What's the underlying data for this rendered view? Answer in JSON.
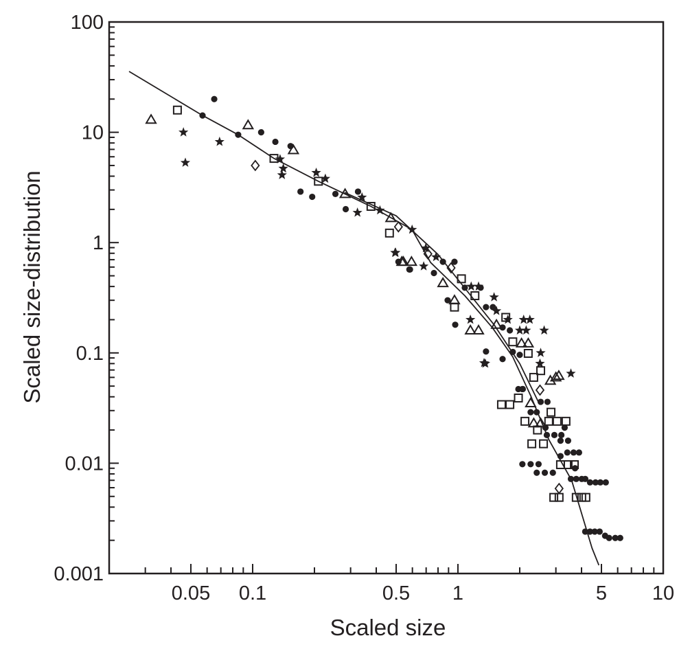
{
  "chart_data": {
    "type": "scatter",
    "title": "",
    "xlabel": "Scaled size",
    "ylabel": "Scaled size-distribution",
    "xscale": "log",
    "yscale": "log",
    "xlim": [
      0.02,
      10
    ],
    "ylim": [
      0.001,
      100
    ],
    "grid": false,
    "legend": "none",
    "x_ticks": [
      {
        "v": 0.05,
        "label": "0.05"
      },
      {
        "v": 0.1,
        "label": "0.1"
      },
      {
        "v": 0.5,
        "label": "0.5"
      },
      {
        "v": 1,
        "label": "1"
      },
      {
        "v": 5,
        "label": "5"
      },
      {
        "v": 10,
        "label": "10"
      }
    ],
    "y_ticks": [
      {
        "v": 100,
        "label": "100"
      },
      {
        "v": 10,
        "label": "10"
      },
      {
        "v": 1,
        "label": "1"
      },
      {
        "v": 0.1,
        "label": "0.1"
      },
      {
        "v": 0.01,
        "label": "0.01"
      },
      {
        "v": 0.001,
        "label": "0.001"
      }
    ],
    "colors": {
      "ink": "#231f20"
    },
    "marker_types": {
      "c": "filled-circle",
      "s": "open-square",
      "t": "open-triangle",
      "d": "open-diamond",
      "*": "filled-star"
    },
    "fit_curves": [
      {
        "name": "fit-main",
        "points": [
          [
            0.025,
            35.6
          ],
          [
            0.057,
            14.2
          ],
          [
            0.085,
            9.5
          ],
          [
            0.127,
            5.8
          ],
          [
            0.209,
            3.6
          ],
          [
            0.377,
            2.13
          ],
          [
            0.598,
            1.31
          ],
          [
            0.736,
            0.66
          ],
          [
            1.08,
            0.33
          ],
          [
            1.47,
            0.17
          ],
          [
            1.85,
            0.092
          ],
          [
            2.26,
            0.041
          ],
          [
            2.77,
            0.0164
          ],
          [
            3.58,
            0.007
          ],
          [
            4.5,
            0.0017
          ],
          [
            4.86,
            0.00119
          ]
        ]
      },
      {
        "name": "fit-secondary",
        "points": [
          [
            0.28,
            2.85
          ],
          [
            0.5,
            1.75
          ],
          [
            0.8,
            0.78
          ],
          [
            1.1,
            0.37
          ],
          [
            1.5,
            0.18
          ],
          [
            2.0,
            0.08
          ],
          [
            2.5,
            0.034
          ]
        ]
      }
    ],
    "points": [
      [
        0.032,
        13.0,
        "t"
      ],
      [
        0.043,
        15.9,
        "s"
      ],
      [
        0.046,
        10.0,
        "*"
      ],
      [
        0.047,
        5.3,
        "*"
      ],
      [
        0.057,
        14.2,
        "c"
      ],
      [
        0.065,
        20.0,
        "c"
      ],
      [
        0.069,
        8.2,
        "*"
      ],
      [
        0.085,
        9.5,
        "c"
      ],
      [
        0.095,
        11.6,
        "t"
      ],
      [
        0.103,
        5.0,
        "d"
      ],
      [
        0.11,
        10.0,
        "c"
      ],
      [
        0.129,
        8.2,
        "c"
      ],
      [
        0.153,
        7.5,
        "c"
      ],
      [
        0.158,
        6.9,
        "t"
      ],
      [
        0.127,
        5.8,
        "s"
      ],
      [
        0.136,
        5.7,
        "*"
      ],
      [
        0.141,
        4.7,
        "*"
      ],
      [
        0.139,
        4.1,
        "*"
      ],
      [
        0.204,
        4.3,
        "*"
      ],
      [
        0.209,
        3.6,
        "s"
      ],
      [
        0.226,
        3.8,
        "*"
      ],
      [
        0.171,
        2.9,
        "c"
      ],
      [
        0.195,
        2.6,
        "c"
      ],
      [
        0.253,
        2.76,
        "c"
      ],
      [
        0.282,
        2.76,
        "t"
      ],
      [
        0.326,
        2.9,
        "c"
      ],
      [
        0.341,
        2.57,
        "*"
      ],
      [
        0.284,
        2.01,
        "c"
      ],
      [
        0.324,
        1.87,
        "*"
      ],
      [
        0.377,
        2.13,
        "s"
      ],
      [
        0.417,
        1.96,
        "*"
      ],
      [
        0.471,
        1.67,
        "t"
      ],
      [
        0.513,
        1.39,
        "d"
      ],
      [
        0.598,
        1.31,
        "*"
      ],
      [
        0.464,
        1.22,
        "s"
      ],
      [
        0.497,
        0.81,
        "*"
      ],
      [
        0.533,
        0.67,
        "t"
      ],
      [
        0.584,
        0.57,
        "c"
      ],
      [
        0.494,
        0.81,
        "*"
      ],
      [
        0.513,
        0.67,
        "c"
      ],
      [
        0.542,
        0.67,
        "t"
      ],
      [
        0.594,
        0.67,
        "t"
      ],
      [
        0.58,
        0.57,
        "c"
      ],
      [
        0.697,
        0.89,
        "*"
      ],
      [
        0.714,
        0.79,
        "d"
      ],
      [
        0.782,
        0.74,
        "*"
      ],
      [
        0.845,
        0.67,
        "c"
      ],
      [
        0.962,
        0.67,
        "c"
      ],
      [
        0.681,
        0.61,
        "*"
      ],
      [
        0.764,
        0.53,
        "c"
      ],
      [
        0.926,
        0.59,
        "d"
      ],
      [
        0.845,
        0.43,
        "t"
      ],
      [
        1.04,
        0.47,
        "s"
      ],
      [
        1.08,
        0.39,
        "c"
      ],
      [
        1.29,
        0.39,
        "c"
      ],
      [
        1.16,
        0.4,
        "*"
      ],
      [
        1.26,
        0.4,
        "*"
      ],
      [
        1.21,
        0.33,
        "s"
      ],
      [
        1.5,
        0.32,
        "*"
      ],
      [
        0.891,
        0.3,
        "c"
      ],
      [
        0.962,
        0.3,
        "t"
      ],
      [
        0.962,
        0.26,
        "s"
      ],
      [
        1.37,
        0.26,
        "c"
      ],
      [
        1.48,
        0.26,
        "c"
      ],
      [
        1.54,
        0.24,
        "*"
      ],
      [
        0.97,
        0.18,
        "c"
      ],
      [
        1.15,
        0.2,
        "*"
      ],
      [
        1.15,
        0.16,
        "t"
      ],
      [
        1.26,
        0.16,
        "t"
      ],
      [
        1.71,
        0.21,
        "s"
      ],
      [
        1.75,
        0.2,
        "*"
      ],
      [
        2.09,
        0.2,
        "*"
      ],
      [
        2.24,
        0.2,
        "*"
      ],
      [
        2.0,
        0.16,
        "*"
      ],
      [
        2.15,
        0.16,
        "*"
      ],
      [
        2.63,
        0.16,
        "*"
      ],
      [
        1.54,
        0.18,
        "t"
      ],
      [
        1.65,
        0.17,
        "c"
      ],
      [
        1.79,
        0.16,
        "c"
      ],
      [
        1.37,
        0.103,
        "c"
      ],
      [
        1.36,
        0.08,
        "*"
      ],
      [
        1.34,
        0.081,
        "*"
      ],
      [
        1.85,
        0.126,
        "s"
      ],
      [
        2.04,
        0.122,
        "t"
      ],
      [
        2.2,
        0.122,
        "t"
      ],
      [
        2.2,
        0.099,
        "s"
      ],
      [
        2.53,
        0.1,
        "*"
      ],
      [
        1.85,
        0.102,
        "c"
      ],
      [
        2.0,
        0.096,
        "c"
      ],
      [
        1.65,
        0.088,
        "c"
      ],
      [
        2.51,
        0.08,
        "*"
      ],
      [
        2.53,
        0.069,
        "s"
      ],
      [
        3.0,
        0.06,
        "t"
      ],
      [
        2.82,
        0.056,
        "t"
      ],
      [
        3.55,
        0.065,
        "*"
      ],
      [
        3.1,
        0.062,
        "t"
      ],
      [
        2.34,
        0.06,
        "s"
      ],
      [
        2.51,
        0.046,
        "d"
      ],
      [
        1.97,
        0.047,
        "c"
      ],
      [
        2.06,
        0.047,
        "c"
      ],
      [
        2.07,
        0.047,
        "c"
      ],
      [
        1.97,
        0.039,
        "s"
      ],
      [
        1.79,
        0.034,
        "s"
      ],
      [
        1.63,
        0.034,
        "s"
      ],
      [
        2.26,
        0.035,
        "t"
      ],
      [
        2.53,
        0.036,
        "c"
      ],
      [
        2.73,
        0.036,
        "c"
      ],
      [
        2.84,
        0.029,
        "s"
      ],
      [
        2.26,
        0.029,
        "c"
      ],
      [
        2.42,
        0.029,
        "c"
      ],
      [
        2.12,
        0.024,
        "s"
      ],
      [
        2.34,
        0.023,
        "t"
      ],
      [
        2.53,
        0.023,
        "t"
      ],
      [
        2.77,
        0.024,
        "s"
      ],
      [
        3.04,
        0.024,
        "s"
      ],
      [
        3.36,
        0.024,
        "s"
      ],
      [
        2.44,
        0.02,
        "s"
      ],
      [
        2.71,
        0.018,
        "c"
      ],
      [
        2.95,
        0.018,
        "c"
      ],
      [
        3.19,
        0.018,
        "c"
      ],
      [
        2.67,
        0.021,
        "c"
      ],
      [
        3.31,
        0.021,
        "c"
      ],
      [
        2.29,
        0.015,
        "s"
      ],
      [
        2.61,
        0.015,
        "s"
      ],
      [
        3.16,
        0.016,
        "c"
      ],
      [
        3.44,
        0.016,
        "c"
      ],
      [
        3.41,
        0.0125,
        "c"
      ],
      [
        3.66,
        0.0125,
        "c"
      ],
      [
        3.89,
        0.0125,
        "c"
      ],
      [
        3.16,
        0.0116,
        "c"
      ],
      [
        2.06,
        0.0098,
        "c"
      ],
      [
        2.26,
        0.0098,
        "c"
      ],
      [
        2.47,
        0.0098,
        "c"
      ],
      [
        2.42,
        0.0082,
        "c"
      ],
      [
        2.65,
        0.0082,
        "c"
      ],
      [
        2.9,
        0.0082,
        "c"
      ],
      [
        3.16,
        0.0097,
        "s"
      ],
      [
        3.44,
        0.0097,
        "s"
      ],
      [
        3.69,
        0.0097,
        "s"
      ],
      [
        3.72,
        0.009,
        "c"
      ],
      [
        3.55,
        0.0072,
        "c"
      ],
      [
        3.77,
        0.0072,
        "c"
      ],
      [
        4.01,
        0.0072,
        "c"
      ],
      [
        4.17,
        0.0072,
        "c"
      ],
      [
        4.4,
        0.0067,
        "c"
      ],
      [
        4.68,
        0.0067,
        "c"
      ],
      [
        4.94,
        0.0067,
        "c"
      ],
      [
        5.25,
        0.0067,
        "c"
      ],
      [
        3.11,
        0.0059,
        "d"
      ],
      [
        2.93,
        0.0049,
        "s"
      ],
      [
        3.11,
        0.0049,
        "s"
      ],
      [
        3.77,
        0.0049,
        "s"
      ],
      [
        4.01,
        0.0049,
        "s"
      ],
      [
        4.2,
        0.0049,
        "s"
      ],
      [
        4.17,
        0.0024,
        "c"
      ],
      [
        4.4,
        0.0024,
        "c"
      ],
      [
        4.64,
        0.0024,
        "c"
      ],
      [
        4.9,
        0.0024,
        "c"
      ],
      [
        5.21,
        0.0022,
        "c"
      ],
      [
        5.45,
        0.0021,
        "c"
      ],
      [
        5.84,
        0.0021,
        "c"
      ],
      [
        6.17,
        0.0021,
        "c"
      ]
    ]
  }
}
